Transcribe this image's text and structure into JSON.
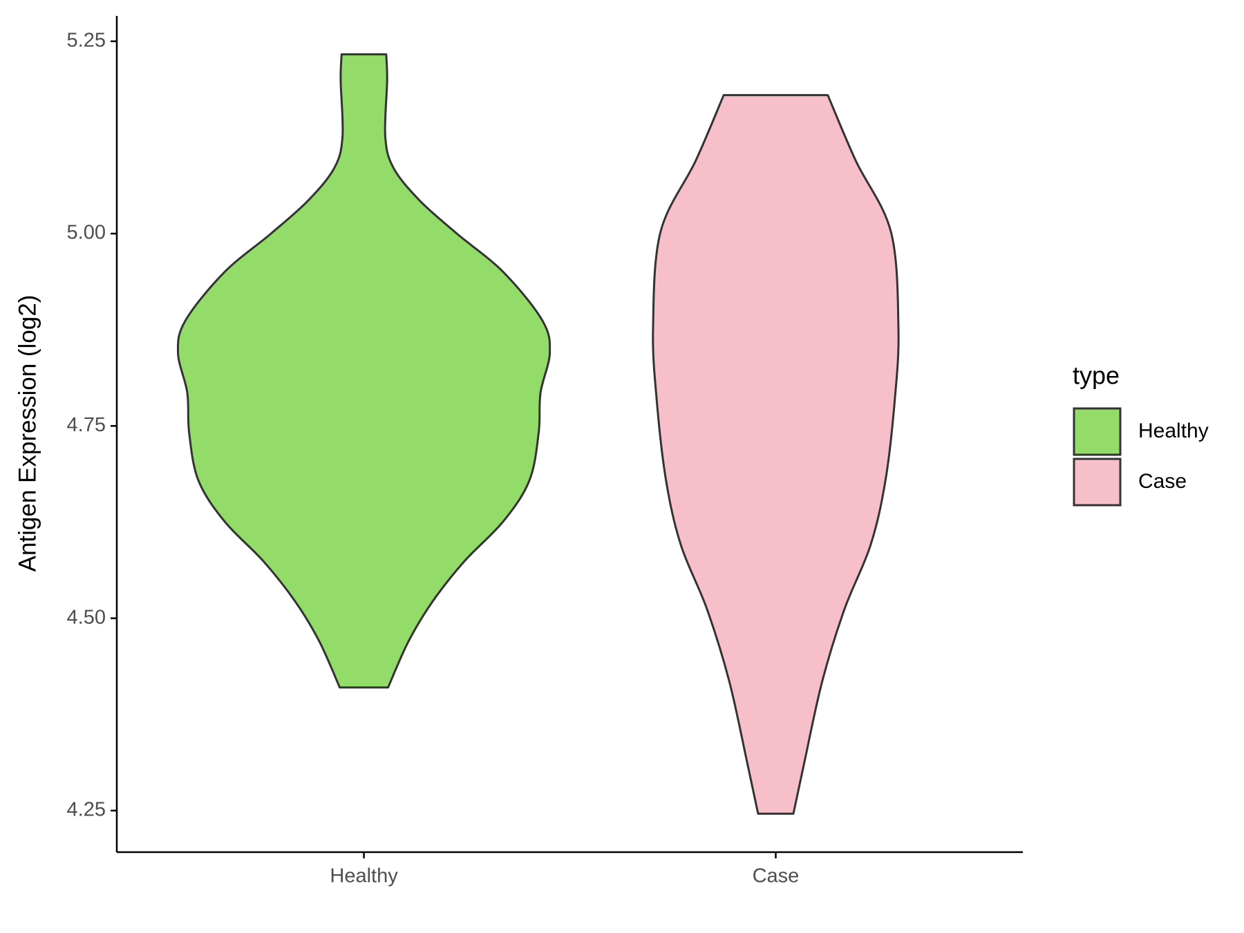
{
  "chart_data": {
    "type": "violin",
    "ylabel": "Antigen Expression (log2)",
    "categories": [
      "Healthy",
      "Case"
    ],
    "ylim": [
      4.196,
      5.283
    ],
    "yticks": [
      {
        "value": 4.25,
        "label": "4.25"
      },
      {
        "value": 4.5,
        "label": "4.50"
      },
      {
        "value": 4.75,
        "label": "4.75"
      },
      {
        "value": 5.0,
        "label": "5.00"
      },
      {
        "value": 5.25,
        "label": "5.25"
      }
    ],
    "legend_title": "type",
    "legend_position": "right",
    "series": [
      {
        "name": "Healthy",
        "color": "#93dc6a",
        "y": [
          4.41,
          4.47,
          4.522,
          4.574,
          4.626,
          4.679,
          4.741,
          4.793,
          4.845,
          4.887,
          4.95,
          5.0,
          5.043,
          5.085,
          5.126,
          5.199,
          5.233
        ],
        "density": [
          0.13,
          0.24,
          0.37,
          0.54,
          0.75,
          0.89,
          0.94,
          0.95,
          1.0,
          0.96,
          0.75,
          0.5,
          0.3,
          0.16,
          0.115,
          0.125,
          0.12
        ]
      },
      {
        "name": "Case",
        "color": "#f7bfca",
        "y": [
          4.246,
          4.314,
          4.418,
          4.512,
          4.595,
          4.679,
          4.783,
          4.877,
          5.002,
          5.095,
          5.18
        ],
        "density": [
          0.095,
          0.155,
          0.25,
          0.37,
          0.51,
          0.59,
          0.64,
          0.66,
          0.62,
          0.43,
          0.28
        ]
      }
    ]
  }
}
